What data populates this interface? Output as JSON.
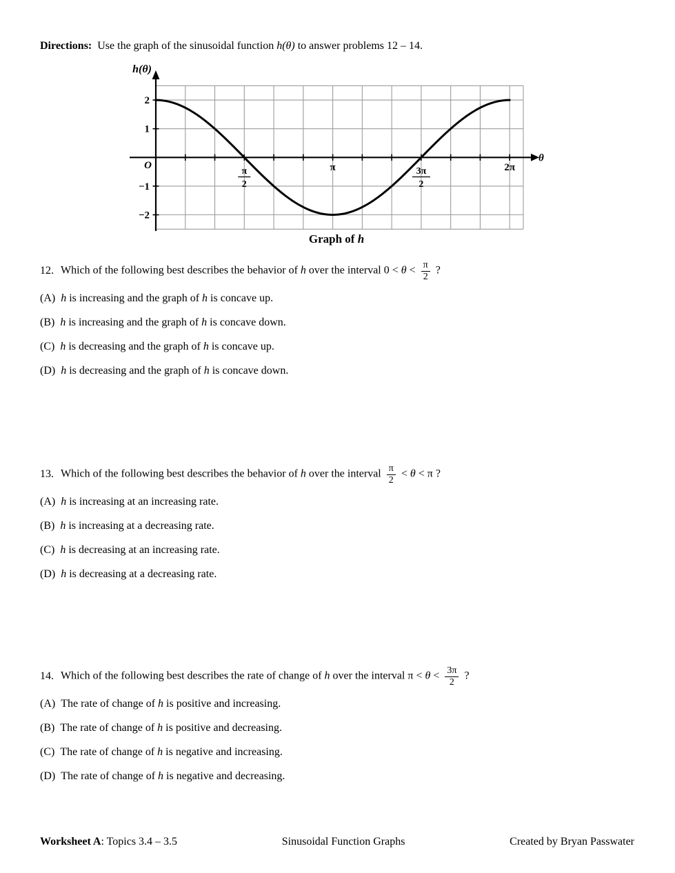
{
  "directions": {
    "label": "Directions:",
    "pre": "  Use the graph of the sinusoidal function ",
    "math": "h(θ)",
    "post": " to answer problems 12 – 14."
  },
  "graph": {
    "caption_pre": "Graph of ",
    "caption_h": "h",
    "axis_label_y": "h(θ)",
    "axis_label_x": "θ",
    "origin_label": "O",
    "y_tick_labels": [
      "2",
      "1",
      "−1",
      "−2"
    ],
    "x_tick_labels": [
      {
        "frac": [
          "π",
          "2"
        ]
      },
      {
        "text": "π"
      },
      {
        "frac": [
          "3π",
          "2"
        ]
      },
      {
        "text": "2π"
      }
    ]
  },
  "chart_data": {
    "type": "line",
    "title": "Graph of h",
    "xlabel": "θ",
    "ylabel": "h(θ)",
    "x_range": [
      "0",
      "2π"
    ],
    "ylim": [
      -2.5,
      2.5
    ],
    "x_tick_values": [
      "0",
      "π/2",
      "π",
      "3π/2",
      "2π"
    ],
    "y_tick_values": [
      2,
      1,
      -1,
      -2
    ],
    "grid": true,
    "x_grid_spacing": "π/6",
    "y_grid_spacing": 1,
    "series": [
      {
        "name": "h",
        "formula_inferred": "h(θ) = 2·cos(θ)",
        "amplitude": 2,
        "midline": 0,
        "period": "2π",
        "key_points": [
          [
            "0",
            2
          ],
          [
            "π/2",
            0
          ],
          [
            "π",
            -2
          ],
          [
            "3π/2",
            0
          ],
          [
            "2π",
            2
          ]
        ]
      }
    ]
  },
  "questions": [
    {
      "number": "12.",
      "stem": [
        {
          "t": "Which of the following best describes the behavior of "
        },
        {
          "t": "h",
          "i": true
        },
        {
          "t": " over the interval "
        },
        {
          "t": "0 < "
        },
        {
          "t": "θ",
          "i": true
        },
        {
          "t": " < "
        },
        {
          "frac": [
            "π",
            "2"
          ]
        },
        {
          "t": " ?"
        }
      ],
      "choices": [
        {
          "label": "(A)",
          "tokens": [
            {
              "t": "h",
              "i": true
            },
            {
              "t": " is increasing and the graph of "
            },
            {
              "t": "h",
              "i": true
            },
            {
              "t": " is concave up."
            }
          ]
        },
        {
          "label": "(B)",
          "tokens": [
            {
              "t": "h",
              "i": true
            },
            {
              "t": " is increasing and the graph of "
            },
            {
              "t": "h",
              "i": true
            },
            {
              "t": " is concave down."
            }
          ]
        },
        {
          "label": "(C)",
          "tokens": [
            {
              "t": "h",
              "i": true
            },
            {
              "t": " is decreasing and the graph of "
            },
            {
              "t": "h",
              "i": true
            },
            {
              "t": " is concave up."
            }
          ]
        },
        {
          "label": "(D)",
          "tokens": [
            {
              "t": "h",
              "i": true
            },
            {
              "t": " is decreasing and the graph of "
            },
            {
              "t": "h",
              "i": true
            },
            {
              "t": " is concave down."
            }
          ]
        }
      ]
    },
    {
      "number": "13.",
      "stem": [
        {
          "t": "Which of the following best describes the behavior of "
        },
        {
          "t": "h",
          "i": true
        },
        {
          "t": " over the interval "
        },
        {
          "frac": [
            "π",
            "2"
          ]
        },
        {
          "t": " < "
        },
        {
          "t": "θ",
          "i": true
        },
        {
          "t": " < π ?"
        }
      ],
      "choices": [
        {
          "label": "(A)",
          "tokens": [
            {
              "t": "h",
              "i": true
            },
            {
              "t": " is increasing at an increasing rate."
            }
          ]
        },
        {
          "label": "(B)",
          "tokens": [
            {
              "t": "h",
              "i": true
            },
            {
              "t": " is increasing at a decreasing rate."
            }
          ]
        },
        {
          "label": "(C)",
          "tokens": [
            {
              "t": "h",
              "i": true
            },
            {
              "t": " is decreasing at an increasing rate."
            }
          ]
        },
        {
          "label": "(D)",
          "tokens": [
            {
              "t": "h",
              "i": true
            },
            {
              "t": " is decreasing at a decreasing rate."
            }
          ]
        }
      ]
    },
    {
      "number": "14.",
      "stem": [
        {
          "t": "Which of the following best describes the rate of change of "
        },
        {
          "t": "h",
          "i": true
        },
        {
          "t": " over the interval "
        },
        {
          "t": "π < "
        },
        {
          "t": "θ",
          "i": true
        },
        {
          "t": " < "
        },
        {
          "frac": [
            "3π",
            "2"
          ]
        },
        {
          "t": " ?"
        }
      ],
      "choices": [
        {
          "label": "(A)",
          "tokens": [
            {
              "t": "The rate of change of "
            },
            {
              "t": "h",
              "i": true
            },
            {
              "t": " is positive and increasing."
            }
          ]
        },
        {
          "label": "(B)",
          "tokens": [
            {
              "t": "The rate of change of "
            },
            {
              "t": "h",
              "i": true
            },
            {
              "t": " is positive and decreasing."
            }
          ]
        },
        {
          "label": "(C)",
          "tokens": [
            {
              "t": "The rate of change of "
            },
            {
              "t": "h",
              "i": true
            },
            {
              "t": " is negative and increasing."
            }
          ]
        },
        {
          "label": "(D)",
          "tokens": [
            {
              "t": "The rate of change of "
            },
            {
              "t": "h",
              "i": true
            },
            {
              "t": " is negative and decreasing."
            }
          ]
        }
      ]
    }
  ],
  "footer": {
    "left_bold": "Worksheet A",
    "left_rest": ": Topics 3.4 – 3.5",
    "center": "Sinusoidal Function Graphs",
    "right": "Created by Bryan Passwater"
  }
}
